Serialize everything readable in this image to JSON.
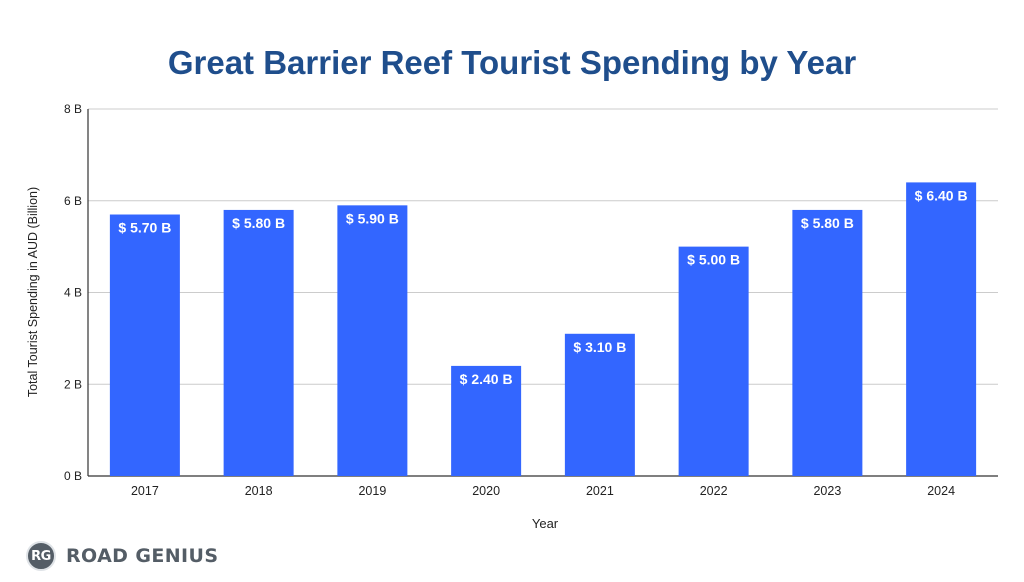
{
  "chart_data": {
    "type": "bar",
    "title": "Great Barrier Reef Tourist Spending by Year",
    "xlabel": "Year",
    "ylabel": "Total Tourist Spending in AUD (Billion)",
    "categories": [
      "2017",
      "2018",
      "2019",
      "2020",
      "2021",
      "2022",
      "2023",
      "2024"
    ],
    "values": [
      5.7,
      5.8,
      5.9,
      2.4,
      3.1,
      5.0,
      5.8,
      6.4
    ],
    "data_labels": [
      "$ 5.70 B",
      "$ 5.80 B",
      "$ 5.90 B",
      "$ 2.40 B",
      "$ 3.10 B",
      "$ 5.00 B",
      "$ 5.80 B",
      "$ 6.40 B"
    ],
    "ylim": [
      0,
      8
    ],
    "yticks": [
      0,
      2,
      4,
      6,
      8
    ],
    "ytick_labels": [
      "0 B",
      "2 B",
      "4 B",
      "6 B",
      "8 B"
    ],
    "grid": true,
    "bar_color": "#3366ff",
    "title_color": "#1f4e8c"
  },
  "branding": {
    "badge": "RG",
    "name": "ROAD GENIUS"
  }
}
